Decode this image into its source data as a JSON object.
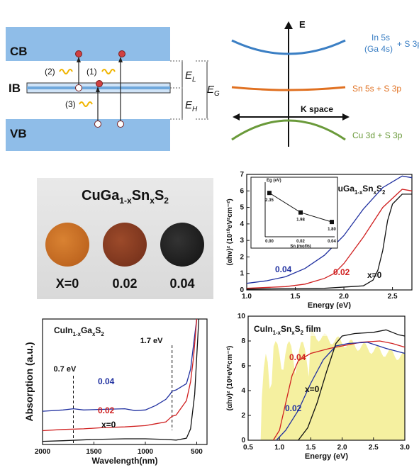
{
  "band_diagram": {
    "cb": "CB",
    "ib": "IB",
    "vb": "VB",
    "trans1": "(1)",
    "trans2": "(2)",
    "trans3": "(3)",
    "el_label": "E",
    "el_sub": "L",
    "eh_label": "E",
    "eh_sub": "H",
    "eg_label": "E",
    "eg_sub": "G",
    "colors": {
      "band": "#8fbde8",
      "ib": "#8fbde8",
      "electron": "#c0392b",
      "photon": "#f0b400"
    }
  },
  "kspace_diagram": {
    "e_axis": "E",
    "k_axis": "K space",
    "upper_line1": "In 5s",
    "upper_line2": "(Ga 4s)",
    "upper_suffix": "+ S 3p",
    "middle_label": "Sn 5s + S 3p",
    "lower_label": "Cu 3d + S 3p",
    "colors": {
      "upper": "#3b7fc4",
      "middle": "#e07020",
      "lower": "#6a9a3a"
    }
  },
  "photo_panel": {
    "formula_main": "CuGa",
    "formula_sub1": "1-x",
    "formula_mid": "Sn",
    "formula_sub2": "x",
    "formula_end": "S",
    "formula_sub3": "2",
    "samples": [
      "X=0",
      "0.02",
      "0.04"
    ],
    "disc_colors": [
      "#c46a1e",
      "#8a3a20",
      "#222222"
    ]
  },
  "chart_data": [
    {
      "type": "line",
      "id": "cugasns-tauc",
      "title_parts": [
        "CuGa",
        "1-x",
        "Sn",
        "x",
        "S",
        "2"
      ],
      "xlabel": "Energy (eV)",
      "ylabel": "(αhν)² (10¹⁰eV²cm⁻²)",
      "xlim": [
        1.0,
        2.7
      ],
      "ylim": [
        0,
        7
      ],
      "x_ticks": [
        "1.0",
        "1.5",
        "2.0",
        "2.5"
      ],
      "y_ticks": [
        "0",
        "1",
        "2",
        "3",
        "4",
        "5",
        "6",
        "7"
      ],
      "series": [
        {
          "name": "0.04",
          "color": "#2030a0",
          "x": [
            1.0,
            1.2,
            1.4,
            1.6,
            1.8,
            2.0,
            2.2,
            2.4,
            2.6,
            2.7
          ],
          "y": [
            0.4,
            0.55,
            0.8,
            1.3,
            2.1,
            3.3,
            4.9,
            6.2,
            6.9,
            6.8
          ]
        },
        {
          "name": "0.02",
          "color": "#d02020",
          "x": [
            1.0,
            1.4,
            1.6,
            1.8,
            1.9,
            2.0,
            2.2,
            2.4,
            2.6,
            2.7
          ],
          "y": [
            0.1,
            0.2,
            0.35,
            0.7,
            1.0,
            1.6,
            3.2,
            5.0,
            6.1,
            6.0
          ]
        },
        {
          "name": "x=0",
          "color": "#111111",
          "x": [
            1.0,
            1.8,
            2.2,
            2.3,
            2.35,
            2.4,
            2.45,
            2.5,
            2.6,
            2.7
          ],
          "y": [
            0.05,
            0.1,
            0.25,
            0.6,
            1.2,
            2.4,
            4.2,
            5.2,
            5.8,
            5.8
          ]
        }
      ],
      "inset": {
        "ylabel": "Eg (eV)",
        "xlabel": "Sn (mol%)",
        "x_ticks": [
          "0.00",
          "0.02",
          "0.04"
        ],
        "points": [
          {
            "x": 0.0,
            "y": 2.35,
            "label": "2.35"
          },
          {
            "x": 0.02,
            "y": 1.98,
            "label": "1.98"
          },
          {
            "x": 0.04,
            "y": 1.8,
            "label": "1.80"
          }
        ]
      }
    },
    {
      "type": "line",
      "id": "cuingas-absorption",
      "title_parts": [
        "CuIn",
        "1-x",
        "Ga",
        "x",
        "S",
        "2"
      ],
      "xlabel": "Wavelength(nm)",
      "ylabel": "Absorption (a.u.)",
      "xlim": [
        2000,
        400
      ],
      "x_ticks": [
        "2000",
        "1500",
        "1000",
        "500"
      ],
      "annotations": [
        "0.7 eV",
        "1.7 eV"
      ],
      "series": [
        {
          "name": "0.04",
          "color": "#2030a0",
          "x": [
            2000,
            1800,
            1700,
            1600,
            1400,
            1200,
            1100,
            1000,
            900,
            800,
            760,
            740,
            700,
            600,
            560,
            530,
            500
          ],
          "y": [
            0.53,
            0.55,
            0.57,
            0.55,
            0.56,
            0.57,
            0.54,
            0.55,
            0.62,
            0.72,
            0.8,
            0.85,
            0.87,
            0.97,
            1.2,
            1.6,
            2.0
          ]
        },
        {
          "name": "0.02",
          "color": "#d02020",
          "x": [
            2000,
            1800,
            1600,
            1400,
            1200,
            1000,
            900,
            800,
            760,
            740,
            700,
            600,
            560,
            530,
            500
          ],
          "y": [
            0.22,
            0.24,
            0.25,
            0.27,
            0.28,
            0.3,
            0.33,
            0.36,
            0.42,
            0.45,
            0.47,
            0.7,
            1.0,
            1.4,
            2.0
          ]
        },
        {
          "name": "x=0",
          "color": "#111111",
          "x": [
            2000,
            1800,
            1500,
            1200,
            1000,
            800,
            700,
            600,
            560,
            520,
            480
          ],
          "y": [
            0.05,
            0.06,
            0.08,
            0.09,
            0.09,
            0.08,
            0.07,
            0.1,
            0.25,
            0.8,
            2.0
          ]
        }
      ]
    },
    {
      "type": "line",
      "id": "cuinsns-film-tauc",
      "title_parts": [
        "CuIn",
        "1-x",
        "Sn",
        "x",
        "S",
        "2",
        " film"
      ],
      "xlabel": "Energy (eV)",
      "ylabel": "(αhν)² (10⁸eV²cm⁻²)",
      "xlim": [
        0.5,
        3.0
      ],
      "ylim": [
        0,
        10
      ],
      "x_ticks": [
        "0.5",
        "1.0",
        "1.5",
        "2.0",
        "2.5",
        "3.0"
      ],
      "y_ticks": [
        "0",
        "2",
        "4",
        "6",
        "8",
        "10"
      ],
      "series": [
        {
          "name": "0.04",
          "color": "#d02020",
          "x": [
            0.9,
            1.0,
            1.1,
            1.2,
            1.3,
            1.5,
            1.8,
            2.0,
            2.3,
            2.6,
            2.8,
            3.0
          ],
          "y": [
            0.0,
            0.8,
            3.0,
            5.2,
            6.4,
            7.0,
            7.4,
            7.6,
            7.9,
            8.0,
            7.8,
            7.5
          ]
        },
        {
          "name": "0.02",
          "color": "#2030a0",
          "x": [
            0.95,
            1.1,
            1.3,
            1.5,
            1.7,
            1.9,
            2.1,
            2.4,
            2.7,
            3.0
          ],
          "y": [
            0.0,
            0.8,
            2.4,
            4.6,
            6.5,
            7.6,
            7.8,
            7.9,
            7.4,
            7.0
          ]
        },
        {
          "name": "x=0",
          "color": "#111111",
          "x": [
            1.3,
            1.45,
            1.6,
            1.75,
            1.9,
            2.0,
            2.2,
            2.5,
            2.7,
            2.9,
            3.0
          ],
          "y": [
            0.0,
            1.0,
            3.0,
            5.5,
            7.8,
            8.4,
            8.6,
            8.7,
            8.9,
            8.5,
            8.4
          ]
        }
      ]
    }
  ]
}
